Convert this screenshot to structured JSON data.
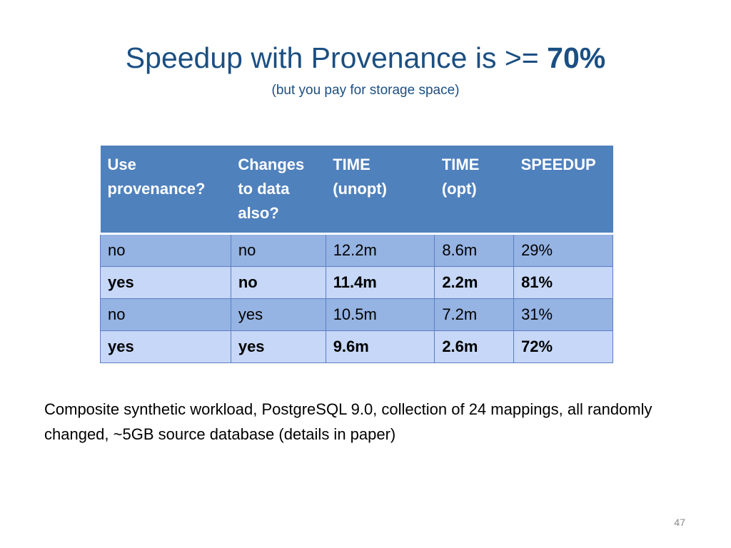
{
  "title": {
    "text": "Speedup with Provenance is >= ",
    "emphasis": "70%"
  },
  "subtitle": "(but you pay for storage space)",
  "table": {
    "header": [
      "Use provenance?",
      "Changes to data also?",
      "TIME (unopt)",
      "TIME (opt)",
      "SPEEDUP"
    ],
    "rows": [
      {
        "cells": [
          "no",
          "no",
          "12.2m",
          "8.6m",
          "29%"
        ],
        "bold": false
      },
      {
        "cells": [
          "yes",
          "no",
          "11.4m",
          "2.2m",
          "81%"
        ],
        "bold": true
      },
      {
        "cells": [
          "no",
          "yes",
          "10.5m",
          "7.2m",
          "31%"
        ],
        "bold": false
      },
      {
        "cells": [
          "yes",
          "yes",
          "9.6m",
          "2.6m",
          "72%"
        ],
        "bold": true
      }
    ]
  },
  "caption": "Composite synthetic workload, PostgreSQL 9.0, collection of 24 mappings, all randomly changed, ~5GB source database (details in paper)",
  "page_number": "47"
}
